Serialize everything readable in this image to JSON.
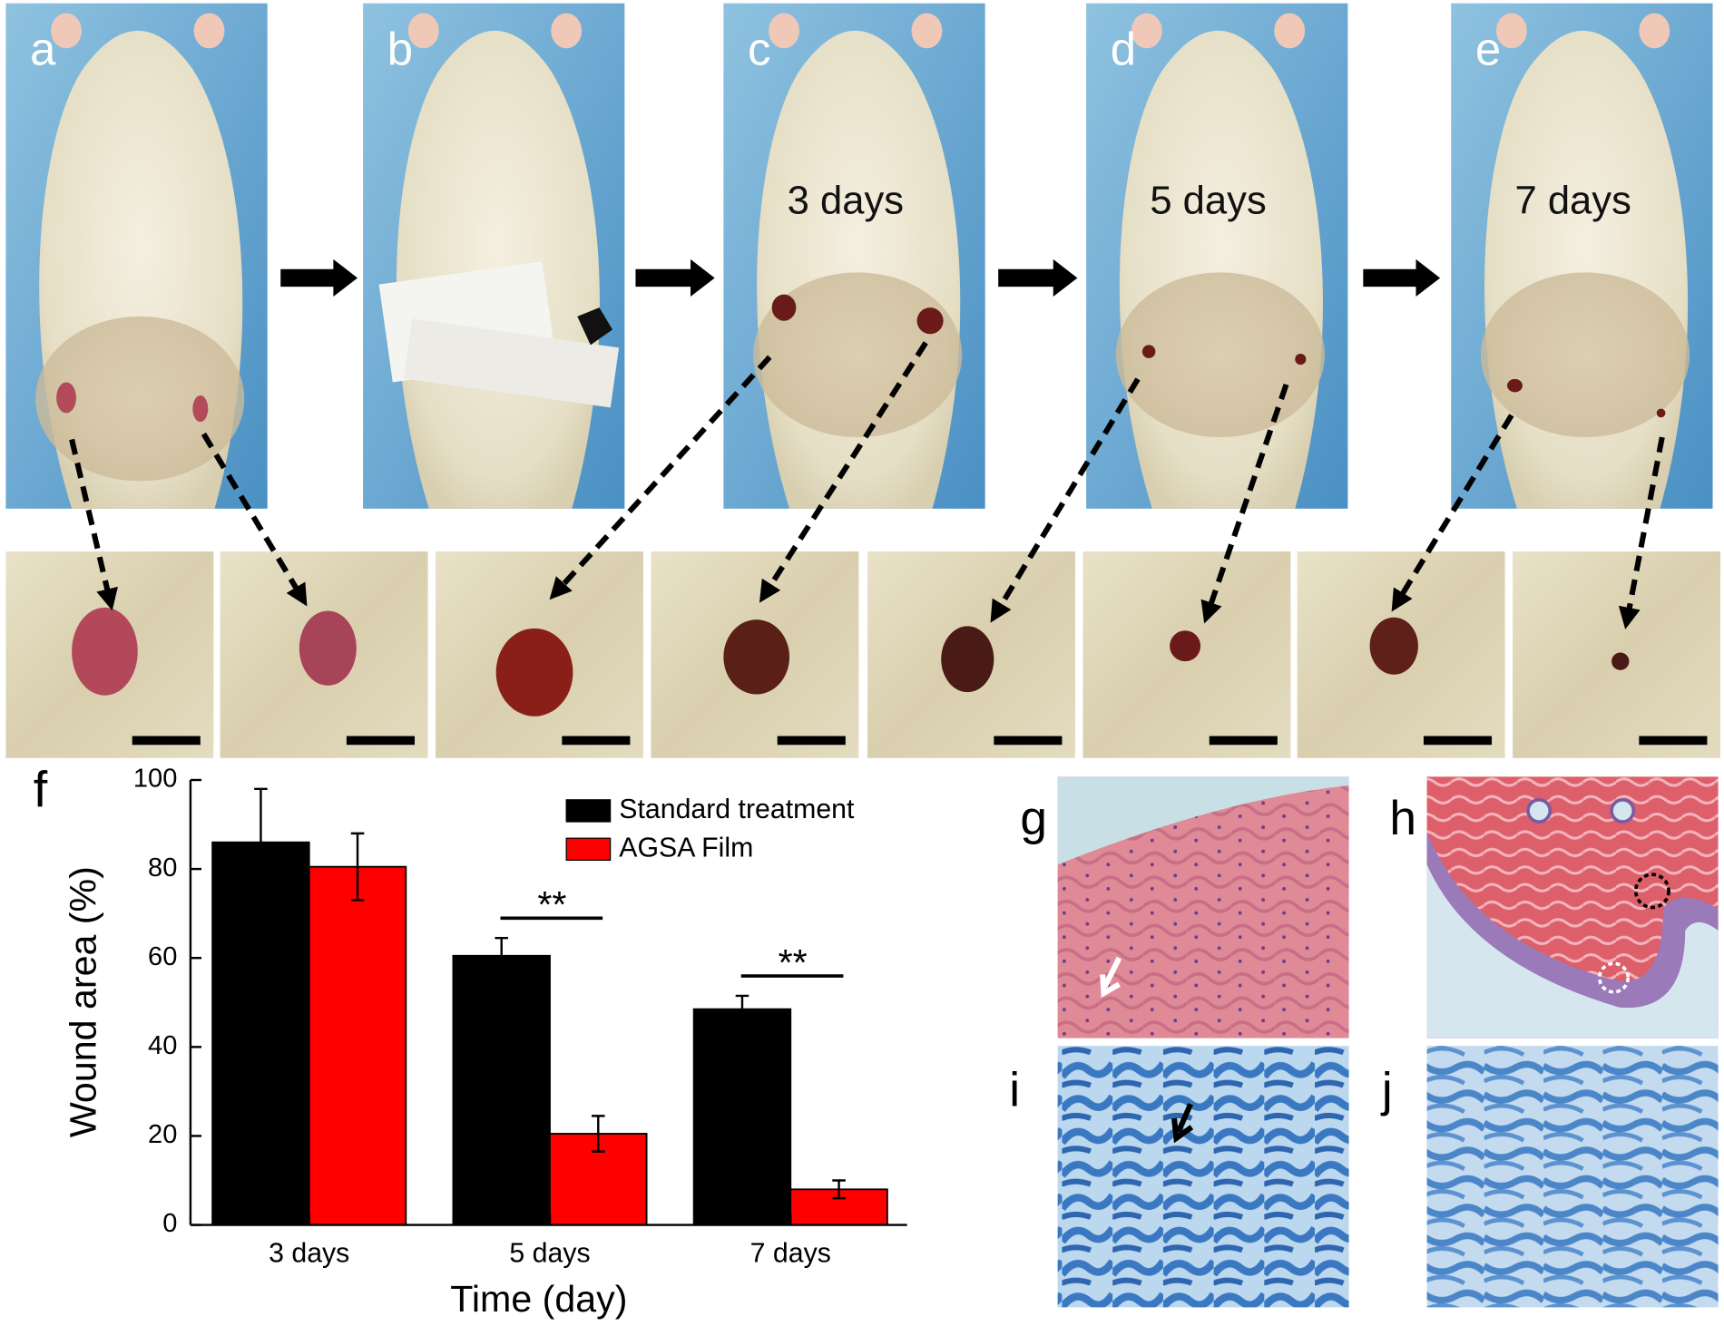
{
  "photo_panels": [
    {
      "label": "a"
    },
    {
      "label": "b"
    },
    {
      "label": "c",
      "caption": "3 days"
    },
    {
      "label": "d",
      "caption": "5 days"
    },
    {
      "label": "e",
      "caption": "7 days"
    }
  ],
  "histology_panels": [
    {
      "label": "g"
    },
    {
      "label": "h"
    },
    {
      "label": "i"
    },
    {
      "label": "j"
    }
  ],
  "chart_data": {
    "type": "bar",
    "panel_label": "f",
    "x_label": "Time (day)",
    "y_label": "Wound area (%)",
    "categories": [
      "3 days",
      "5 days",
      "7 days"
    ],
    "series": [
      {
        "name": "Standard treatment",
        "color": "#000000",
        "values": [
          86,
          60.5,
          48.5
        ],
        "errors": [
          12,
          4,
          3
        ]
      },
      {
        "name": "AGSA Film",
        "color": "#ff0000",
        "values": [
          80.5,
          20.5,
          8
        ],
        "errors": [
          7.5,
          4,
          2
        ]
      }
    ],
    "significance": [
      null,
      "**",
      "**"
    ],
    "ylim": [
      0,
      100
    ],
    "yticks": [
      0,
      20,
      40,
      60,
      80,
      100
    ],
    "legend": "top-right"
  }
}
